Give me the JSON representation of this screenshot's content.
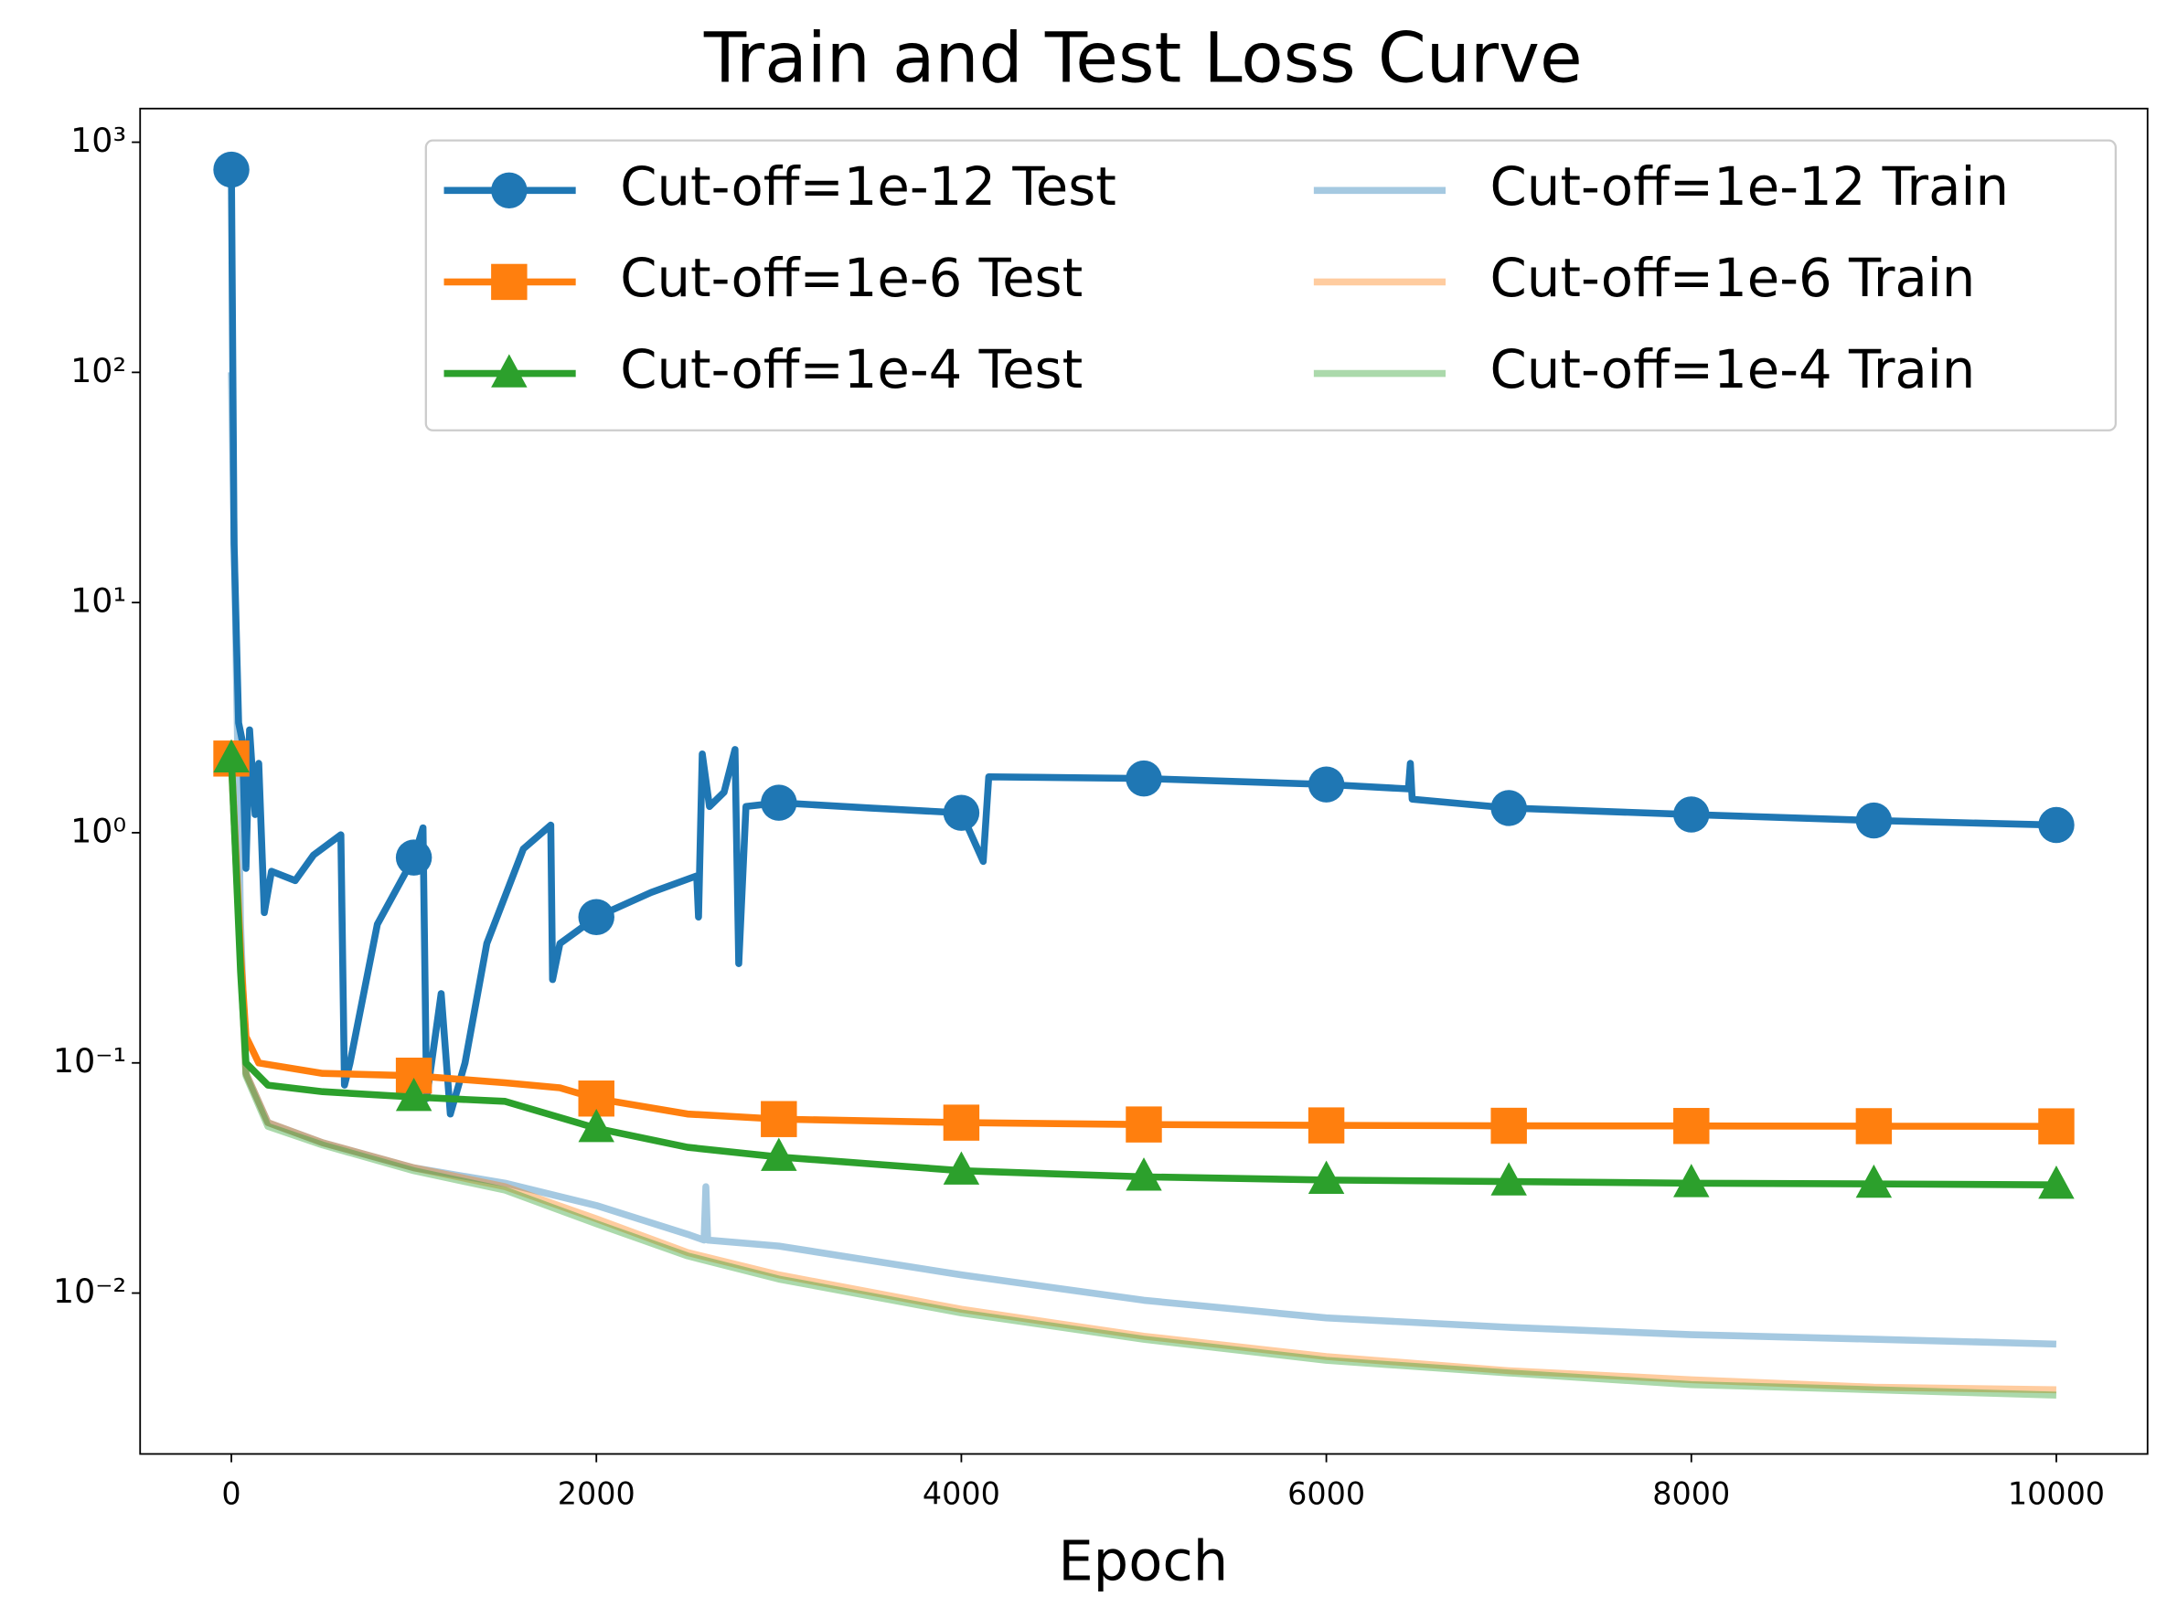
{
  "chart_data": {
    "type": "line",
    "title": "Train and Test Loss Curve",
    "xlabel": "Epoch",
    "xlim": [
      -500,
      10500
    ],
    "xticks": [
      0,
      2000,
      4000,
      6000,
      8000,
      10000
    ],
    "ylim": [
      0.002,
      1400
    ],
    "yscale": "log",
    "yticks": [
      {
        "value": 0.01,
        "label": "10⁻²"
      },
      {
        "value": 0.1,
        "label": "10⁻¹"
      },
      {
        "value": 1,
        "label": "10⁰"
      },
      {
        "value": 10,
        "label": "10¹"
      },
      {
        "value": 100,
        "label": "10²"
      },
      {
        "value": 1000,
        "label": "10³"
      }
    ],
    "legend": "upper right",
    "markevery": 1000,
    "series": [
      {
        "name": "Cut-off=1e-12 Test",
        "color": "#1f77b4",
        "marker": "o",
        "x": [
          0,
          15,
          40,
          60,
          80,
          100,
          130,
          150,
          180,
          220,
          350,
          450,
          600,
          620,
          650,
          800,
          1000,
          1050,
          1070,
          1150,
          1200,
          1280,
          1400,
          1600,
          1750,
          1760,
          1800,
          2000,
          2300,
          2550,
          2560,
          2580,
          2620,
          2700,
          2760,
          2780,
          2820,
          3000,
          3500,
          4000,
          4120,
          4150,
          5000,
          6000,
          6450,
          6460,
          6470,
          7000,
          8000,
          9000,
          10000
        ],
        "values": [
          760,
          18,
          3.0,
          2.5,
          0.7,
          2.8,
          1.2,
          2.0,
          0.45,
          0.68,
          0.62,
          0.8,
          0.98,
          0.08,
          0.1,
          0.4,
          0.78,
          1.05,
          0.07,
          0.2,
          0.06,
          0.1,
          0.33,
          0.85,
          1.08,
          0.23,
          0.33,
          0.43,
          0.55,
          0.65,
          0.43,
          2.2,
          1.3,
          1.5,
          2.3,
          0.27,
          1.3,
          1.35,
          1.28,
          1.22,
          0.75,
          1.75,
          1.72,
          1.62,
          1.55,
          2.0,
          1.4,
          1.28,
          1.2,
          1.13,
          1.08
        ]
      },
      {
        "name": "Cut-off=1e-6 Test",
        "color": "#ff7f0e",
        "marker": "s",
        "x": [
          0,
          50,
          80,
          150,
          500,
          1000,
          1500,
          1800,
          2000,
          2500,
          3000,
          4000,
          5000,
          6000,
          7000,
          8000,
          9000,
          10000
        ],
        "values": [
          2.1,
          0.3,
          0.13,
          0.1,
          0.09,
          0.088,
          0.082,
          0.078,
          0.07,
          0.06,
          0.057,
          0.055,
          0.054,
          0.0535,
          0.0533,
          0.0532,
          0.0531,
          0.053
        ]
      },
      {
        "name": "Cut-off=1e-4 Test",
        "color": "#2ca02c",
        "marker": "^",
        "x": [
          0,
          50,
          80,
          200,
          500,
          1000,
          1500,
          2000,
          2500,
          3000,
          4000,
          5000,
          6000,
          7000,
          8000,
          9000,
          10000
        ],
        "values": [
          2.1,
          0.25,
          0.1,
          0.08,
          0.075,
          0.071,
          0.068,
          0.052,
          0.043,
          0.039,
          0.034,
          0.032,
          0.031,
          0.0305,
          0.03,
          0.0298,
          0.0295
        ]
      },
      {
        "name": "Cut-off=1e-12 Train",
        "color": "#1f77b4",
        "alpha": 0.4,
        "x": [
          0,
          50,
          80,
          200,
          500,
          1000,
          1500,
          2000,
          2500,
          2590,
          2600,
          2610,
          3000,
          4000,
          5000,
          6000,
          7000,
          8000,
          9000,
          10000
        ],
        "values": [
          100,
          0.4,
          0.09,
          0.055,
          0.045,
          0.035,
          0.03,
          0.024,
          0.018,
          0.017,
          0.029,
          0.017,
          0.016,
          0.012,
          0.0093,
          0.0078,
          0.0071,
          0.0066,
          0.0063,
          0.006
        ]
      },
      {
        "name": "Cut-off=1e-6 Train",
        "color": "#ff7f0e",
        "alpha": 0.4,
        "x": [
          0,
          80,
          200,
          500,
          1000,
          1500,
          2000,
          2500,
          3000,
          4000,
          5000,
          6000,
          7000,
          8000,
          9000,
          10000
        ],
        "values": [
          2.0,
          0.09,
          0.055,
          0.045,
          0.035,
          0.029,
          0.021,
          0.015,
          0.012,
          0.0085,
          0.0065,
          0.0053,
          0.0046,
          0.0042,
          0.0039,
          0.0038
        ]
      },
      {
        "name": "Cut-off=1e-4 Train",
        "color": "#2ca02c",
        "alpha": 0.4,
        "x": [
          0,
          80,
          200,
          500,
          1000,
          1500,
          2000,
          2500,
          3000,
          4000,
          5000,
          6000,
          7000,
          8000,
          9000,
          10000
        ],
        "values": [
          2.0,
          0.088,
          0.053,
          0.044,
          0.034,
          0.028,
          0.02,
          0.0145,
          0.0115,
          0.0082,
          0.0063,
          0.0051,
          0.0045,
          0.004,
          0.0038,
          0.0036
        ]
      }
    ]
  }
}
